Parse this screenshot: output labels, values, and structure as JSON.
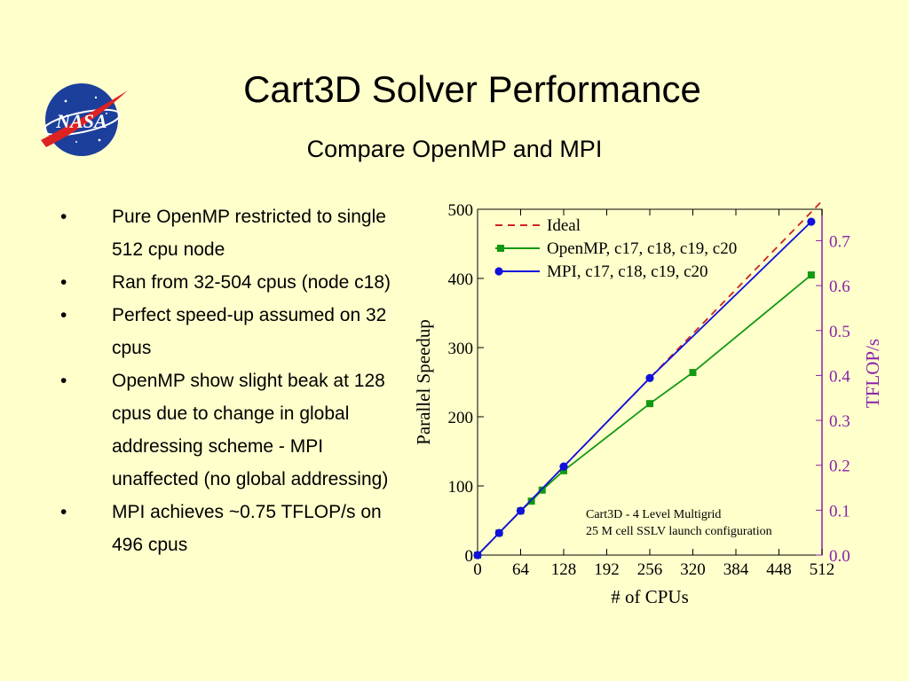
{
  "slide": {
    "title": "Cart3D Solver Performance",
    "subtitle": "Compare OpenMP and MPI",
    "logo_text": "NASA",
    "bullets": [
      "Pure OpenMP restricted to single 512 cpu node",
      "Ran from 32-504 cpus (node c18)",
      "Perfect speed-up assumed on 32 cpus",
      "OpenMP show slight beak at 128 cpus due to change in global addressing scheme - MPI unaffected (no global addressing)",
      "MPI achieves ~0.75 TFLOP/s on 496 cpus"
    ],
    "bullet_marker": "•"
  },
  "chart_data": {
    "type": "line",
    "xlabel": "# of CPUs",
    "ylabel": "Parallel Speedup",
    "y2label": "TFLOP/s",
    "xlim": [
      0,
      512
    ],
    "ylim": [
      0,
      500
    ],
    "y2lim": [
      0,
      0.77
    ],
    "xticks": [
      0,
      64,
      128,
      192,
      256,
      320,
      384,
      448,
      512
    ],
    "yticks": [
      0,
      100,
      200,
      300,
      400,
      500
    ],
    "y2ticks": [
      "0.0",
      "0.1",
      "0.2",
      "0.3",
      "0.4",
      "0.5",
      "0.6",
      "0.7"
    ],
    "legend_position": "top-left",
    "grid": false,
    "series": [
      {
        "name": "Ideal",
        "style": "dashed",
        "color": "#cc2222",
        "marker": "none",
        "x": [
          0,
          512
        ],
        "y": [
          0,
          512
        ]
      },
      {
        "name": "OpenMP, c17, c18, c19, c20",
        "style": "solid",
        "color": "#119911",
        "marker": "square",
        "x": [
          0,
          32,
          64,
          80,
          96,
          128,
          256,
          320,
          496
        ],
        "y": [
          0,
          32,
          64,
          78,
          94,
          122,
          219,
          264,
          405
        ]
      },
      {
        "name": "MPI, c17, c18, c19, c20",
        "style": "solid",
        "color": "#1111dd",
        "marker": "circle",
        "x": [
          0,
          32,
          64,
          128,
          256,
          496
        ],
        "y": [
          0,
          32,
          64,
          128,
          256,
          482
        ]
      }
    ],
    "annotations": [
      "Cart3D - 4 Level Multigrid",
      "25 M cell SSLV launch configuration"
    ],
    "colors": {
      "axis": "#000000",
      "y2_axis": "#8822aa"
    }
  }
}
